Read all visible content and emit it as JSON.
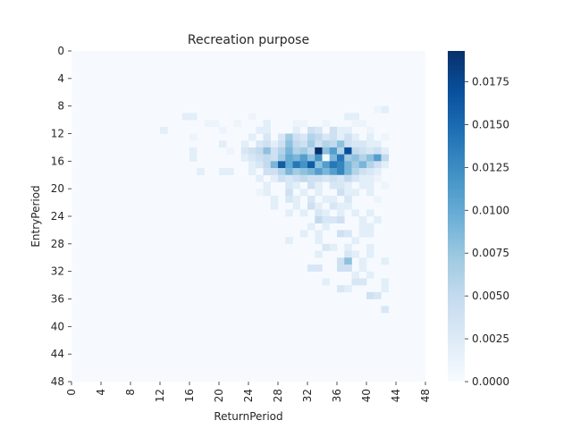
{
  "chart_data": {
    "type": "heatmap",
    "title": "Recreation purpose",
    "xlabel": "ReturnPeriod",
    "ylabel": "EntryPeriod",
    "x_ticks": [
      "0",
      "4",
      "8",
      "12",
      "16",
      "20",
      "24",
      "28",
      "32",
      "36",
      "40",
      "44",
      "48"
    ],
    "y_ticks": [
      "0",
      "4",
      "8",
      "12",
      "16",
      "20",
      "24",
      "28",
      "32",
      "36",
      "40",
      "44",
      "48"
    ],
    "grid_size": 48,
    "colormap": "Blues",
    "value_range": [
      0,
      0.0193
    ],
    "colorbar_ticks": [
      "0.0000",
      "0.0025",
      "0.0050",
      "0.0075",
      "0.0100",
      "0.0125",
      "0.0150",
      "0.0175"
    ],
    "colorbar_values": [
      0,
      0.0025,
      0.005,
      0.0075,
      0.01,
      0.0125,
      0.015,
      0.0175
    ],
    "background_value": 0.0001,
    "cells": [
      [
        8,
        42,
        0.002
      ],
      [
        8,
        41,
        0.001
      ],
      [
        9,
        15,
        0.002
      ],
      [
        9,
        16,
        0.002
      ],
      [
        9,
        24,
        0.001
      ],
      [
        9,
        37,
        0.002
      ],
      [
        9,
        38,
        0.002
      ],
      [
        10,
        18,
        0.001
      ],
      [
        10,
        19,
        0.001
      ],
      [
        10,
        22,
        0.001
      ],
      [
        10,
        26,
        0.002
      ],
      [
        10,
        30,
        0.001
      ],
      [
        10,
        31,
        0.001
      ],
      [
        10,
        34,
        0.001
      ],
      [
        10,
        38,
        0.001
      ],
      [
        10,
        39,
        0.001
      ],
      [
        11,
        12,
        0.002
      ],
      [
        11,
        20,
        0.001
      ],
      [
        11,
        25,
        0.002
      ],
      [
        11,
        26,
        0.002
      ],
      [
        11,
        30,
        0.002
      ],
      [
        11,
        32,
        0.004
      ],
      [
        11,
        33,
        0.003
      ],
      [
        11,
        35,
        0.004
      ],
      [
        11,
        36,
        0.002
      ],
      [
        11,
        37,
        0.002
      ],
      [
        11,
        40,
        0.001
      ],
      [
        12,
        16,
        0.001
      ],
      [
        12,
        24,
        0.002
      ],
      [
        12,
        26,
        0.003
      ],
      [
        12,
        28,
        0.003
      ],
      [
        12,
        29,
        0.007
      ],
      [
        12,
        30,
        0.004
      ],
      [
        12,
        31,
        0.003
      ],
      [
        12,
        32,
        0.006
      ],
      [
        12,
        33,
        0.005
      ],
      [
        12,
        34,
        0.003
      ],
      [
        12,
        35,
        0.004
      ],
      [
        12,
        36,
        0.002
      ],
      [
        12,
        37,
        0.004
      ],
      [
        12,
        38,
        0.002
      ],
      [
        12,
        40,
        0.002
      ],
      [
        12,
        42,
        0.001
      ],
      [
        13,
        20,
        0.002
      ],
      [
        13,
        23,
        0.002
      ],
      [
        13,
        25,
        0.003
      ],
      [
        13,
        26,
        0.004
      ],
      [
        13,
        27,
        0.002
      ],
      [
        13,
        28,
        0.004
      ],
      [
        13,
        29,
        0.008
      ],
      [
        13,
        30,
        0.005
      ],
      [
        13,
        31,
        0.004
      ],
      [
        13,
        32,
        0.007
      ],
      [
        13,
        33,
        0.004
      ],
      [
        13,
        34,
        0.006
      ],
      [
        13,
        35,
        0.005
      ],
      [
        13,
        36,
        0.008
      ],
      [
        13,
        37,
        0.004
      ],
      [
        13,
        38,
        0.003
      ],
      [
        13,
        39,
        0.003
      ],
      [
        13,
        40,
        0.002
      ],
      [
        13,
        41,
        0.002
      ],
      [
        14,
        16,
        0.002
      ],
      [
        14,
        21,
        0.001
      ],
      [
        14,
        23,
        0.003
      ],
      [
        14,
        24,
        0.004
      ],
      [
        14,
        25,
        0.005
      ],
      [
        14,
        26,
        0.008
      ],
      [
        14,
        27,
        0.004
      ],
      [
        14,
        28,
        0.006
      ],
      [
        14,
        29,
        0.009
      ],
      [
        14,
        30,
        0.006
      ],
      [
        14,
        31,
        0.007
      ],
      [
        14,
        32,
        0.005
      ],
      [
        14,
        33,
        0.0193
      ],
      [
        14,
        34,
        0.008
      ],
      [
        14,
        35,
        0.011
      ],
      [
        14,
        36,
        0.006
      ],
      [
        14,
        37,
        0.017
      ],
      [
        14,
        38,
        0.005
      ],
      [
        14,
        39,
        0.004
      ],
      [
        14,
        40,
        0.003
      ],
      [
        14,
        41,
        0.004
      ],
      [
        14,
        42,
        0.002
      ],
      [
        15,
        16,
        0.002
      ],
      [
        15,
        23,
        0.002
      ],
      [
        15,
        24,
        0.003
      ],
      [
        15,
        25,
        0.004
      ],
      [
        15,
        26,
        0.005
      ],
      [
        15,
        27,
        0.004
      ],
      [
        15,
        28,
        0.007
      ],
      [
        15,
        29,
        0.01
      ],
      [
        15,
        30,
        0.009
      ],
      [
        15,
        31,
        0.011
      ],
      [
        15,
        32,
        0.008
      ],
      [
        15,
        33,
        0.012
      ],
      [
        15,
        34,
        0.0005
      ],
      [
        15,
        35,
        0.009
      ],
      [
        15,
        36,
        0.014
      ],
      [
        15,
        37,
        0.007
      ],
      [
        15,
        38,
        0.008
      ],
      [
        15,
        39,
        0.006
      ],
      [
        15,
        40,
        0.008
      ],
      [
        15,
        41,
        0.011
      ],
      [
        15,
        42,
        0.005
      ],
      [
        16,
        24,
        0.002
      ],
      [
        16,
        25,
        0.003
      ],
      [
        16,
        26,
        0.005
      ],
      [
        16,
        27,
        0.009
      ],
      [
        16,
        28,
        0.016
      ],
      [
        16,
        29,
        0.01
      ],
      [
        16,
        30,
        0.014
      ],
      [
        16,
        31,
        0.012
      ],
      [
        16,
        32,
        0.016
      ],
      [
        16,
        33,
        0.008
      ],
      [
        16,
        34,
        0.011
      ],
      [
        16,
        35,
        0.014
      ],
      [
        16,
        36,
        0.013
      ],
      [
        16,
        37,
        0.009
      ],
      [
        16,
        38,
        0.007
      ],
      [
        16,
        39,
        0.009
      ],
      [
        16,
        40,
        0.006
      ],
      [
        16,
        41,
        0.004
      ],
      [
        16,
        42,
        0.002
      ],
      [
        17,
        17,
        0.002
      ],
      [
        17,
        20,
        0.002
      ],
      [
        17,
        21,
        0.002
      ],
      [
        17,
        24,
        0.002
      ],
      [
        17,
        26,
        0.004
      ],
      [
        17,
        27,
        0.004
      ],
      [
        17,
        28,
        0.006
      ],
      [
        17,
        29,
        0.009
      ],
      [
        17,
        30,
        0.007
      ],
      [
        17,
        31,
        0.008
      ],
      [
        17,
        32,
        0.009
      ],
      [
        17,
        33,
        0.011
      ],
      [
        17,
        34,
        0.009
      ],
      [
        17,
        35,
        0.011
      ],
      [
        17,
        36,
        0.013
      ],
      [
        17,
        37,
        0.009
      ],
      [
        17,
        38,
        0.006
      ],
      [
        17,
        39,
        0.004
      ],
      [
        17,
        40,
        0.003
      ],
      [
        17,
        41,
        0.002
      ],
      [
        18,
        25,
        0.002
      ],
      [
        18,
        27,
        0.002
      ],
      [
        18,
        28,
        0.004
      ],
      [
        18,
        29,
        0.003
      ],
      [
        18,
        30,
        0.004
      ],
      [
        18,
        31,
        0.005
      ],
      [
        18,
        32,
        0.004
      ],
      [
        18,
        33,
        0.004
      ],
      [
        18,
        34,
        0.003
      ],
      [
        18,
        35,
        0.004
      ],
      [
        18,
        36,
        0.003
      ],
      [
        18,
        37,
        0.005
      ],
      [
        18,
        38,
        0.003
      ],
      [
        18,
        39,
        0.002
      ],
      [
        18,
        40,
        0.002
      ],
      [
        18,
        41,
        0.001
      ],
      [
        19,
        26,
        0.002
      ],
      [
        19,
        29,
        0.003
      ],
      [
        19,
        30,
        0.002
      ],
      [
        19,
        32,
        0.004
      ],
      [
        19,
        33,
        0.002
      ],
      [
        19,
        35,
        0.003
      ],
      [
        19,
        36,
        0.003
      ],
      [
        19,
        37,
        0.002
      ],
      [
        19,
        39,
        0.002
      ],
      [
        19,
        40,
        0.002
      ],
      [
        19,
        42,
        0.001
      ],
      [
        20,
        25,
        0.001
      ],
      [
        20,
        26,
        0.002
      ],
      [
        20,
        29,
        0.004
      ],
      [
        20,
        31,
        0.002
      ],
      [
        20,
        33,
        0.002
      ],
      [
        20,
        36,
        0.004
      ],
      [
        20,
        37,
        0.002
      ],
      [
        20,
        38,
        0.002
      ],
      [
        20,
        40,
        0.002
      ],
      [
        21,
        27,
        0.002
      ],
      [
        21,
        29,
        0.003
      ],
      [
        21,
        30,
        0.002
      ],
      [
        21,
        32,
        0.003
      ],
      [
        21,
        34,
        0.002
      ],
      [
        21,
        35,
        0.002
      ],
      [
        21,
        37,
        0.003
      ],
      [
        21,
        41,
        0.001
      ],
      [
        22,
        27,
        0.002
      ],
      [
        22,
        30,
        0.002
      ],
      [
        22,
        32,
        0.004
      ],
      [
        22,
        33,
        0.002
      ],
      [
        22,
        35,
        0.003
      ],
      [
        22,
        36,
        0.002
      ],
      [
        22,
        37,
        0.002
      ],
      [
        23,
        29,
        0.002
      ],
      [
        23,
        31,
        0.002
      ],
      [
        23,
        33,
        0.003
      ],
      [
        23,
        34,
        0.002
      ],
      [
        23,
        36,
        0.002
      ],
      [
        23,
        38,
        0.002
      ],
      [
        23,
        40,
        0.002
      ],
      [
        24,
        33,
        0.005
      ],
      [
        24,
        34,
        0.003
      ],
      [
        24,
        35,
        0.003
      ],
      [
        24,
        36,
        0.004
      ],
      [
        24,
        39,
        0.002
      ],
      [
        24,
        41,
        0.002
      ],
      [
        25,
        32,
        0.002
      ],
      [
        25,
        34,
        0.002
      ],
      [
        25,
        39,
        0.002
      ],
      [
        25,
        40,
        0.002
      ],
      [
        26,
        31,
        0.002
      ],
      [
        26,
        33,
        0.002
      ],
      [
        26,
        36,
        0.004
      ],
      [
        26,
        37,
        0.003
      ],
      [
        26,
        39,
        0.002
      ],
      [
        26,
        40,
        0.002
      ],
      [
        27,
        29,
        0.002
      ],
      [
        27,
        33,
        0.002
      ],
      [
        27,
        38,
        0.002
      ],
      [
        28,
        34,
        0.003
      ],
      [
        28,
        35,
        0.002
      ],
      [
        28,
        37,
        0.002
      ],
      [
        28,
        40,
        0.002
      ],
      [
        29,
        33,
        0.002
      ],
      [
        29,
        37,
        0.003
      ],
      [
        29,
        38,
        0.002
      ],
      [
        29,
        40,
        0.002
      ],
      [
        30,
        36,
        0.004
      ],
      [
        30,
        37,
        0.008
      ],
      [
        30,
        39,
        0.002
      ],
      [
        30,
        42,
        0.002
      ],
      [
        31,
        32,
        0.003
      ],
      [
        31,
        33,
        0.003
      ],
      [
        31,
        36,
        0.004
      ],
      [
        31,
        37,
        0.004
      ],
      [
        31,
        39,
        0.002
      ],
      [
        32,
        38,
        0.002
      ],
      [
        32,
        40,
        0.002
      ],
      [
        33,
        34,
        0.002
      ],
      [
        33,
        38,
        0.003
      ],
      [
        33,
        39,
        0.003
      ],
      [
        33,
        42,
        0.002
      ],
      [
        34,
        36,
        0.003
      ],
      [
        34,
        37,
        0.002
      ],
      [
        34,
        42,
        0.002
      ],
      [
        35,
        40,
        0.004
      ],
      [
        35,
        41,
        0.003
      ],
      [
        37,
        42,
        0.003
      ]
    ]
  }
}
